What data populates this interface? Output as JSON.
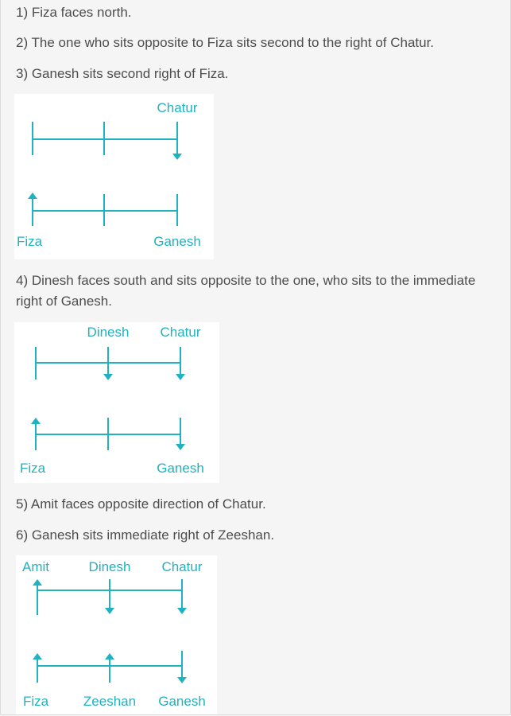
{
  "steps": [
    "1) Fiza faces north.",
    "2) The one who sits opposite to Fiza sits second to the right of Chatur.",
    "3) Ganesh sits second right of Fiza.",
    "4) Dinesh faces south and sits opposite to the one, who sits to the immediate right of Ganesh.",
    "5) Amit faces opposite direction of Chatur.",
    "6) Ganesh sits immediate right of Zeeshan."
  ],
  "diagram_color": "#1fb2c1",
  "diagrams": [
    {
      "top_labels": [
        "Chatur"
      ],
      "bottom_labels": [
        "Fiza",
        "Ganesh"
      ],
      "facing": {
        "top": [
          "none",
          "none",
          "down"
        ],
        "bottom": [
          "up",
          "none",
          "none"
        ]
      }
    },
    {
      "top_labels": [
        "Dinesh",
        "Chatur"
      ],
      "bottom_labels": [
        "Fiza",
        "Ganesh"
      ],
      "facing": {
        "top": [
          "none",
          "down",
          "down"
        ],
        "bottom": [
          "up",
          "none",
          "down"
        ]
      }
    },
    {
      "top_labels": [
        "Amit",
        "Dinesh",
        "Chatur"
      ],
      "bottom_labels": [
        "Fiza",
        "Zeeshan",
        "Ganesh"
      ],
      "facing": {
        "top": [
          "up",
          "down",
          "down"
        ],
        "bottom": [
          "up",
          "up",
          "down"
        ]
      }
    }
  ]
}
